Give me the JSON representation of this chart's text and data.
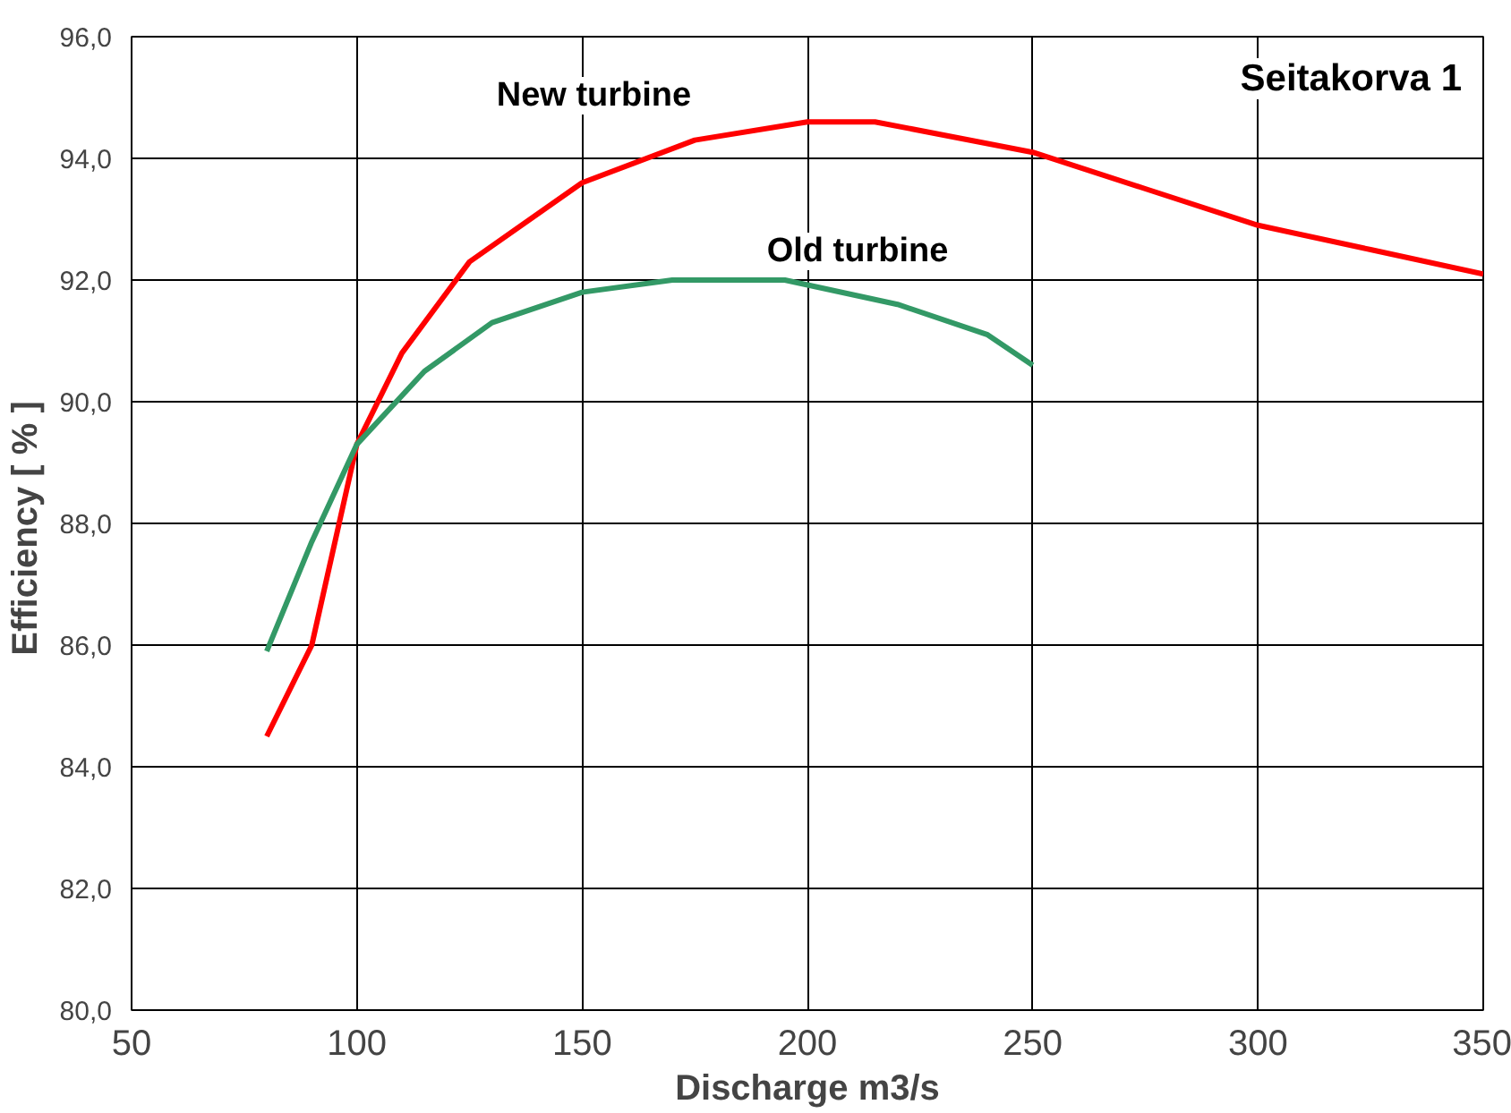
{
  "chart_data": {
    "type": "line",
    "title": "Seitakorva 1",
    "xlabel": "Discharge m3/s",
    "ylabel": "Efficiency  [ % ]",
    "xlim": [
      50,
      350
    ],
    "xticks": [
      50,
      100,
      150,
      200,
      250,
      300,
      350
    ],
    "ylim": [
      80,
      96
    ],
    "yticks": [
      {
        "value": 80,
        "label": "80,0"
      },
      {
        "value": 82,
        "label": "82,0"
      },
      {
        "value": 84,
        "label": "84,0"
      },
      {
        "value": 86,
        "label": "86,0"
      },
      {
        "value": 88,
        "label": "88,0"
      },
      {
        "value": 90,
        "label": "90,0"
      },
      {
        "value": 92,
        "label": "92,0"
      },
      {
        "value": 94,
        "label": "94,0"
      },
      {
        "value": 96,
        "label": "96,0"
      }
    ],
    "grid": true,
    "marker": "none",
    "line_style": "solid",
    "series": [
      {
        "name": "New turbine",
        "color": "#ff0000",
        "x": [
          80,
          90,
          100,
          110,
          125,
          150,
          175,
          200,
          215,
          250,
          275,
          300,
          325,
          350
        ],
        "values": [
          84.5,
          86.0,
          89.3,
          90.8,
          92.3,
          93.6,
          94.3,
          94.6,
          94.6,
          94.1,
          93.5,
          92.9,
          92.5,
          92.1
        ]
      },
      {
        "name": "Old turbine",
        "color": "#339966",
        "x": [
          80,
          90,
          100,
          115,
          130,
          150,
          170,
          195,
          220,
          240,
          250
        ],
        "values": [
          85.9,
          87.7,
          89.3,
          90.5,
          91.3,
          91.8,
          92.0,
          92.0,
          91.6,
          91.1,
          90.6
        ]
      }
    ]
  }
}
